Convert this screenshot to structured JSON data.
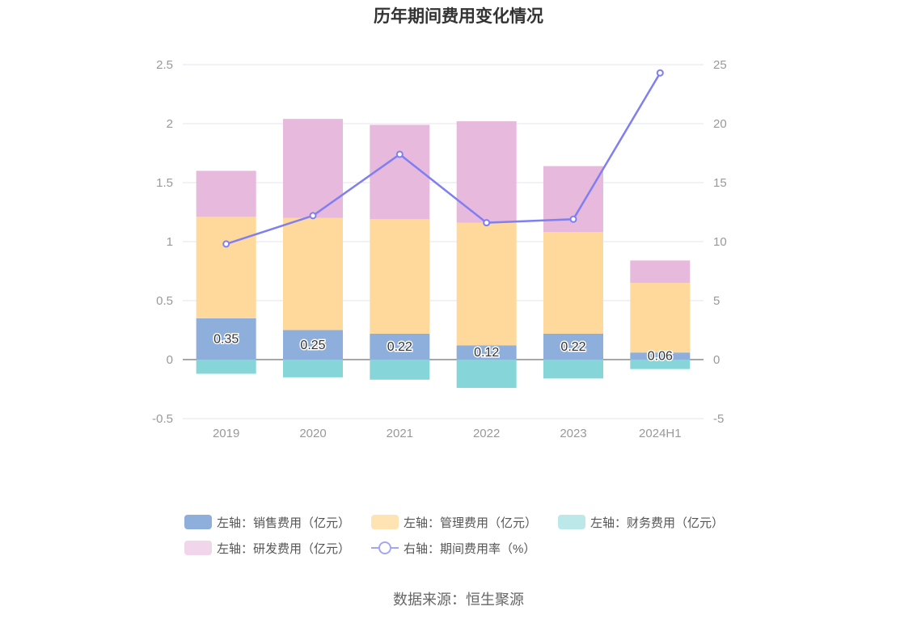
{
  "title": "历年期间费用变化情况",
  "source": "数据来源：恒生聚源",
  "chart_data": {
    "type": "bar",
    "stacked": true,
    "categories": [
      "2019",
      "2020",
      "2021",
      "2022",
      "2023",
      "2024H1"
    ],
    "left_axis": {
      "ylim": [
        -0.5,
        2.5
      ],
      "ticks": [
        "-0.5",
        "0",
        "0.5",
        "1",
        "1.5",
        "2",
        "2.5"
      ]
    },
    "right_axis": {
      "ylim": [
        -5,
        25
      ],
      "ticks": [
        "-5",
        "0",
        "5",
        "10",
        "15",
        "20",
        "25"
      ]
    },
    "grid": true,
    "legend_position": "bottom",
    "series": [
      {
        "name": "左轴：销售费用（亿元）",
        "axis": "left",
        "color": "#8eaedb",
        "values": [
          0.35,
          0.25,
          0.22,
          0.12,
          0.22,
          0.06
        ],
        "labels": [
          "0.35",
          "0.25",
          "0.22",
          "0.12",
          "0.22",
          "0.06"
        ]
      },
      {
        "name": "左轴：管理费用（亿元）",
        "axis": "left",
        "color": "#ffd99b",
        "values": [
          0.86,
          0.95,
          0.97,
          1.04,
          0.86,
          0.59
        ]
      },
      {
        "name": "左轴：财务费用（亿元）",
        "axis": "left",
        "color": "#86d6d9",
        "values": [
          -0.12,
          -0.15,
          -0.17,
          -0.24,
          -0.16,
          -0.08
        ]
      },
      {
        "name": "左轴：研发费用（亿元）",
        "axis": "left",
        "color": "#e7b9dc",
        "values": [
          0.39,
          0.84,
          0.8,
          0.86,
          0.56,
          0.19
        ]
      },
      {
        "name": "右轴：期间费用率（%）",
        "axis": "right",
        "type": "line",
        "color": "#7f7ff2",
        "values": [
          9.8,
          12.2,
          17.4,
          11.6,
          11.9,
          24.3
        ]
      }
    ]
  },
  "legend": [
    {
      "label": "左轴：销售费用（亿元）",
      "color": "#8eaedb",
      "kind": "box"
    },
    {
      "label": "左轴：管理费用（亿元）",
      "color": "#ffe3b3",
      "kind": "box"
    },
    {
      "label": "左轴：财务费用（亿元）",
      "color": "#bde8ea",
      "kind": "box"
    },
    {
      "label": "左轴：研发费用（亿元）",
      "color": "#f1d5ea",
      "kind": "box"
    },
    {
      "label": "右轴：期间费用率（%）",
      "color": "#a5a5f5",
      "kind": "line"
    }
  ]
}
